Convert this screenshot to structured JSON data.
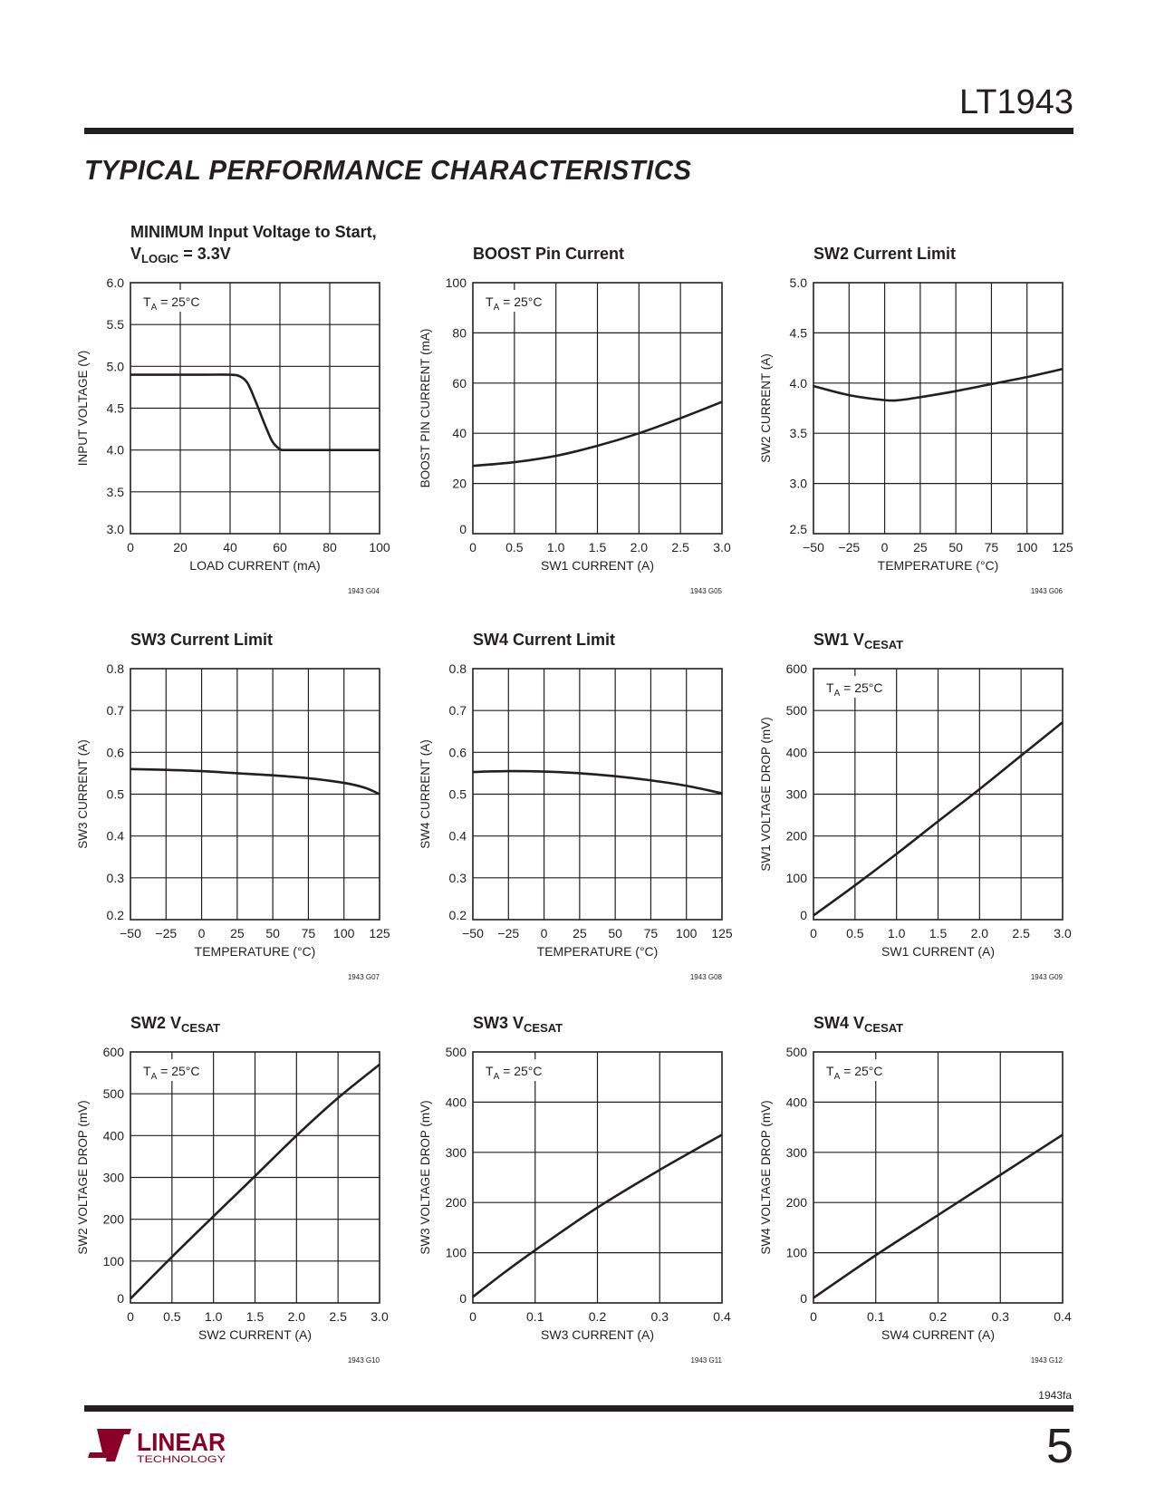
{
  "header": {
    "part_number": "LT1943",
    "section_title": "TYPICAL PERFORMANCE CHARACTERISTICS"
  },
  "footer": {
    "doc_code": "1943fa",
    "page_number": "5",
    "logo_text": "LINEAR",
    "logo_subtext": "TECHNOLOGY"
  },
  "colors": {
    "ink": "#231f20",
    "brand": "#8b0026"
  },
  "chart_data": [
    {
      "type": "line",
      "title_lines": [
        [
          {
            "t": "MINIMUM Input Voltage to Start,"
          }
        ],
        [
          {
            "t": "V"
          },
          {
            "t": "LOGIC",
            "sub": true
          },
          {
            "t": " = 3.3V"
          }
        ]
      ],
      "xlabel": "LOAD CURRENT (mA)",
      "ylabel": "INPUT VOLTAGE (V)",
      "xlim": [
        0,
        100
      ],
      "ylim": [
        3,
        6
      ],
      "xticks": [
        "0",
        "20",
        "40",
        "60",
        "80",
        "100"
      ],
      "yticks": [
        "3.0",
        "3.5",
        "4.0",
        "4.5",
        "5.0",
        "5.5",
        "6.0"
      ],
      "xgrid": 5,
      "ygrid": 6,
      "annotation": {
        "t": "T",
        "sub": "A",
        "rest": " = 25°C"
      },
      "fig_code": "1943 G04",
      "x": [
        0,
        10,
        20,
        30,
        40,
        44,
        47,
        50,
        52,
        54,
        57,
        60,
        62,
        70,
        80,
        90,
        100
      ],
      "y": [
        4.9,
        4.9,
        4.9,
        4.9,
        4.9,
        4.88,
        4.8,
        4.6,
        4.45,
        4.3,
        4.1,
        4.01,
        4.0,
        4.0,
        4.0,
        4.0,
        4.0
      ]
    },
    {
      "type": "line",
      "title_lines": [
        [
          {
            "t": "BOOST Pin Current"
          }
        ]
      ],
      "xlabel": "SW1 CURRENT (A)",
      "ylabel": "BOOST PIN CURRENT (mA)",
      "xlim": [
        0,
        3
      ],
      "ylim": [
        0,
        100
      ],
      "xticks": [
        "0",
        "0.5",
        "1.0",
        "1.5",
        "2.0",
        "2.5",
        "3.0"
      ],
      "yticks": [
        "0",
        "20",
        "40",
        "60",
        "80",
        "100"
      ],
      "xgrid": 6,
      "ygrid": 5,
      "annotation": {
        "t": "T",
        "sub": "A",
        "rest": " = 25°C"
      },
      "fig_code": "1943 G05",
      "x": [
        0,
        0.5,
        1.0,
        1.5,
        2.0,
        2.5,
        3.0
      ],
      "y": [
        27,
        28.5,
        31,
        35,
        40,
        46,
        52.5
      ]
    },
    {
      "type": "line",
      "title_lines": [
        [
          {
            "t": "SW2 Current Limit"
          }
        ]
      ],
      "xlabel": "TEMPERATURE (°C)",
      "ylabel": "SW2 CURRENT (A)",
      "xlim": [
        -50,
        125
      ],
      "ylim": [
        2.5,
        5
      ],
      "xticks": [
        "−50",
        "−25",
        "0",
        "25",
        "50",
        "75",
        "100",
        "125"
      ],
      "yticks": [
        "2.5",
        "3.0",
        "3.5",
        "4.0",
        "4.5",
        "5.0"
      ],
      "xgrid": 7,
      "ygrid": 5,
      "annotation": null,
      "fig_code": "1943 G06",
      "x": [
        -50,
        -25,
        0,
        10,
        25,
        50,
        75,
        100,
        125
      ],
      "y": [
        3.97,
        3.88,
        3.83,
        3.83,
        3.86,
        3.92,
        3.99,
        4.06,
        4.14
      ]
    },
    {
      "type": "line",
      "title_lines": [
        [
          {
            "t": "SW3 Current Limit"
          }
        ]
      ],
      "xlabel": "TEMPERATURE (°C)",
      "ylabel": "SW3 CURRENT (A)",
      "xlim": [
        -50,
        125
      ],
      "ylim": [
        0.2,
        0.8
      ],
      "xticks": [
        "−50",
        "−25",
        "0",
        "25",
        "50",
        "75",
        "100",
        "125"
      ],
      "yticks": [
        "0.2",
        "0.3",
        "0.4",
        "0.5",
        "0.6",
        "0.7",
        "0.8"
      ],
      "xgrid": 7,
      "ygrid": 6,
      "annotation": null,
      "fig_code": "1943 G07",
      "x": [
        -50,
        -25,
        0,
        25,
        50,
        75,
        100,
        115,
        125
      ],
      "y": [
        0.56,
        0.558,
        0.555,
        0.55,
        0.545,
        0.538,
        0.527,
        0.515,
        0.5
      ]
    },
    {
      "type": "line",
      "title_lines": [
        [
          {
            "t": "SW4 Current Limit"
          }
        ]
      ],
      "xlabel": "TEMPERATURE (°C)",
      "ylabel": "SW4 CURRENT (A)",
      "xlim": [
        -50,
        125
      ],
      "ylim": [
        0.2,
        0.8
      ],
      "xticks": [
        "−50",
        "−25",
        "0",
        "25",
        "50",
        "75",
        "100",
        "125"
      ],
      "yticks": [
        "0.2",
        "0.3",
        "0.4",
        "0.5",
        "0.6",
        "0.7",
        "0.8"
      ],
      "xgrid": 7,
      "ygrid": 6,
      "annotation": null,
      "fig_code": "1943 G08",
      "x": [
        -50,
        -25,
        0,
        25,
        50,
        75,
        100,
        125
      ],
      "y": [
        0.553,
        0.555,
        0.554,
        0.55,
        0.543,
        0.533,
        0.52,
        0.502
      ]
    },
    {
      "type": "line",
      "title_lines": [
        [
          {
            "t": "SW1 V"
          },
          {
            "t": "CESAT",
            "sub": true
          }
        ]
      ],
      "xlabel": "SW1 CURRENT (A)",
      "ylabel": "SW1 VOLTAGE DROP (mV)",
      "xlim": [
        0,
        3
      ],
      "ylim": [
        0,
        600
      ],
      "xticks": [
        "0",
        "0.5",
        "1.0",
        "1.5",
        "2.0",
        "2.5",
        "3.0"
      ],
      "yticks": [
        "0",
        "100",
        "200",
        "300",
        "400",
        "500",
        "600"
      ],
      "xgrid": 6,
      "ygrid": 6,
      "annotation": {
        "t": "T",
        "sub": "A",
        "rest": " = 25°C"
      },
      "fig_code": "1943 G09",
      "x": [
        0,
        0.5,
        1.0,
        1.5,
        2.0,
        2.5,
        3.0
      ],
      "y": [
        10,
        82,
        157,
        235,
        312,
        392,
        472
      ]
    },
    {
      "type": "line",
      "title_lines": [
        [
          {
            "t": "SW2 V"
          },
          {
            "t": "CESAT",
            "sub": true
          }
        ]
      ],
      "xlabel": "SW2 CURRENT (A)",
      "ylabel": "SW2 VOLTAGE DROP (mV)",
      "xlim": [
        0,
        3
      ],
      "ylim": [
        0,
        600
      ],
      "xticks": [
        "0",
        "0.5",
        "1.0",
        "1.5",
        "2.0",
        "2.5",
        "3.0"
      ],
      "yticks": [
        "0",
        "100",
        "200",
        "300",
        "400",
        "500",
        "600"
      ],
      "xgrid": 6,
      "ygrid": 6,
      "annotation": {
        "t": "T",
        "sub": "A",
        "rest": " = 25°C"
      },
      "fig_code": "1943 G10",
      "x": [
        0,
        0.5,
        1.0,
        1.5,
        2.0,
        2.5,
        3.0
      ],
      "y": [
        10,
        110,
        207,
        303,
        400,
        490,
        570
      ]
    },
    {
      "type": "line",
      "title_lines": [
        [
          {
            "t": "SW3 V"
          },
          {
            "t": "CESAT",
            "sub": true
          }
        ]
      ],
      "xlabel": "SW3 CURRENT (A)",
      "ylabel": "SW3 VOLTAGE DROP (mV)",
      "xlim": [
        0,
        0.4
      ],
      "ylim": [
        0,
        500
      ],
      "xticks": [
        "0",
        "0.1",
        "0.2",
        "0.3",
        "0.4"
      ],
      "yticks": [
        "0",
        "100",
        "200",
        "300",
        "400",
        "500"
      ],
      "xgrid": 4,
      "ygrid": 5,
      "annotation": {
        "t": "T",
        "sub": "A",
        "rest": " = 25°C"
      },
      "fig_code": "1943 G11",
      "x": [
        0,
        0.05,
        0.1,
        0.2,
        0.3,
        0.4
      ],
      "y": [
        12,
        60,
        105,
        190,
        265,
        335
      ]
    },
    {
      "type": "line",
      "title_lines": [
        [
          {
            "t": "SW4 V"
          },
          {
            "t": "CESAT",
            "sub": true
          }
        ]
      ],
      "xlabel": "SW4 CURRENT (A)",
      "ylabel": "SW4 VOLTAGE DROP (mV)",
      "xlim": [
        0,
        0.4
      ],
      "ylim": [
        0,
        500
      ],
      "xticks": [
        "0",
        "0.1",
        "0.2",
        "0.3",
        "0.4"
      ],
      "yticks": [
        "0",
        "100",
        "200",
        "300",
        "400",
        "500"
      ],
      "xgrid": 4,
      "ygrid": 5,
      "annotation": {
        "t": "T",
        "sub": "A",
        "rest": " = 25°C"
      },
      "fig_code": "1943 G12",
      "x": [
        0,
        0.1,
        0.2,
        0.3,
        0.4
      ],
      "y": [
        10,
        95,
        175,
        255,
        335
      ]
    }
  ]
}
